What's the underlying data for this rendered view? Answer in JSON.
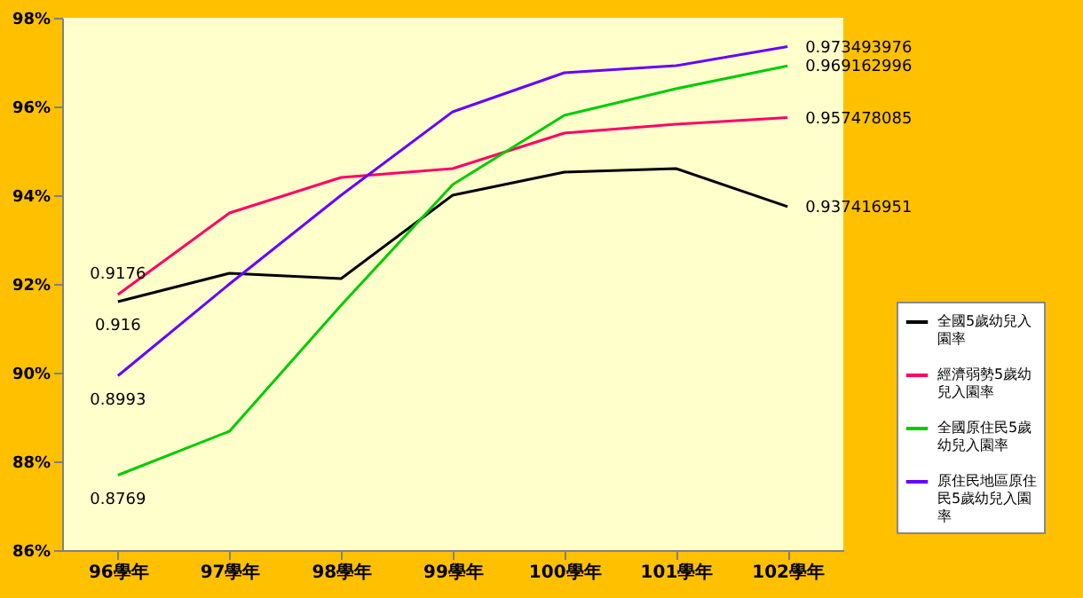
{
  "chart_data": {
    "type": "line",
    "categories": [
      "96學年",
      "97學年",
      "98學年",
      "99學年",
      "100學年",
      "101學年",
      "102學年"
    ],
    "series": [
      {
        "name": "全國5歲幼兒入園率",
        "color": "#000000",
        "values": [
          0.916,
          0.9224,
          0.9212,
          0.94,
          0.9452,
          0.946,
          0.937416951
        ],
        "value_labels": [
          "0.916",
          null,
          null,
          null,
          null,
          null,
          "0.937416951"
        ]
      },
      {
        "name": "經濟弱勢5歲幼兒入園率",
        "color": "#ff0066",
        "values": [
          0.9176,
          0.936,
          0.944,
          0.946,
          0.954,
          0.956,
          0.957478085
        ],
        "value_labels": [
          "0.9176",
          null,
          null,
          null,
          null,
          null,
          "0.957478085"
        ]
      },
      {
        "name": "全國原住民5歲幼兒入園率",
        "color": "#00cc00",
        "values": [
          0.8769,
          0.8868,
          0.9152,
          0.9424,
          0.958,
          0.964,
          0.969162996
        ],
        "value_labels": [
          "0.8769",
          null,
          null,
          null,
          null,
          null,
          "0.969162996"
        ]
      },
      {
        "name": "原住民地區原住民5歲幼兒入園率",
        "color": "#6600ff",
        "values": [
          0.8993,
          0.92,
          0.94,
          0.9588,
          0.9676,
          0.9692,
          0.973493976
        ],
        "value_labels": [
          "0.8993",
          null,
          null,
          null,
          null,
          null,
          "0.973493976"
        ]
      }
    ],
    "ylim": [
      0.86,
      0.98
    ],
    "yticks": [
      {
        "value": 0.86,
        "label": "86%"
      },
      {
        "value": 0.88,
        "label": "88%"
      },
      {
        "value": 0.9,
        "label": "90%"
      },
      {
        "value": 0.92,
        "label": "92%"
      },
      {
        "value": 0.94,
        "label": "94%"
      },
      {
        "value": 0.96,
        "label": "96%"
      },
      {
        "value": 0.98,
        "label": "98%"
      }
    ],
    "grid": false,
    "legend": "bottom right",
    "marker": "none",
    "line_style": "solid"
  }
}
